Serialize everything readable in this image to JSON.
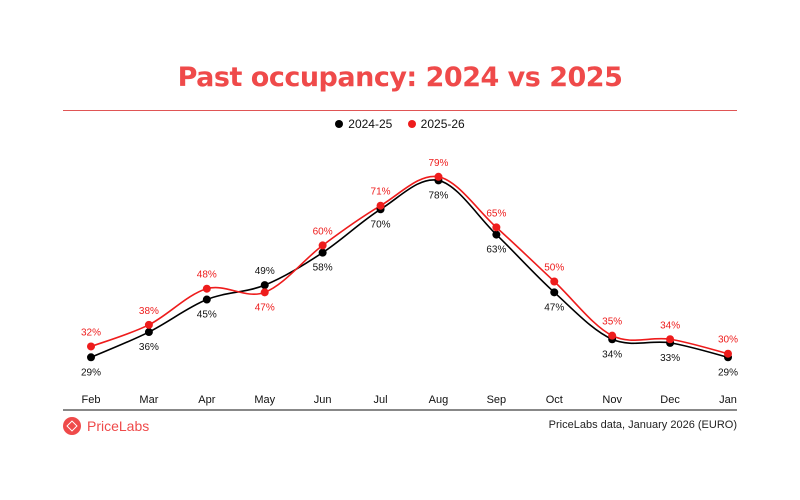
{
  "chart_data": {
    "type": "line",
    "title": "Past occupancy: 2024 vs 2025",
    "categories": [
      "Feb",
      "Mar",
      "Apr",
      "May",
      "Jun",
      "Jul",
      "Aug",
      "Sep",
      "Oct",
      "Nov",
      "Dec",
      "Jan"
    ],
    "series": [
      {
        "name": "2024-25",
        "color": "#000000",
        "values": [
          29,
          36,
          45,
          49,
          58,
          70,
          78,
          63,
          47,
          34,
          33,
          29
        ]
      },
      {
        "name": "2025-26",
        "color": "#ee1c1c",
        "values": [
          32,
          38,
          48,
          47,
          60,
          71,
          79,
          65,
          50,
          35,
          34,
          30
        ]
      }
    ],
    "value_suffix": "%",
    "smooth": true,
    "grid": false,
    "legend_position": "top-center",
    "xlabel": "",
    "ylabel": ""
  },
  "legend": [
    "2024-25",
    "2025-26"
  ],
  "footer": {
    "brand": "PriceLabs",
    "source": "PriceLabs data, January 2026 (EURO)"
  }
}
